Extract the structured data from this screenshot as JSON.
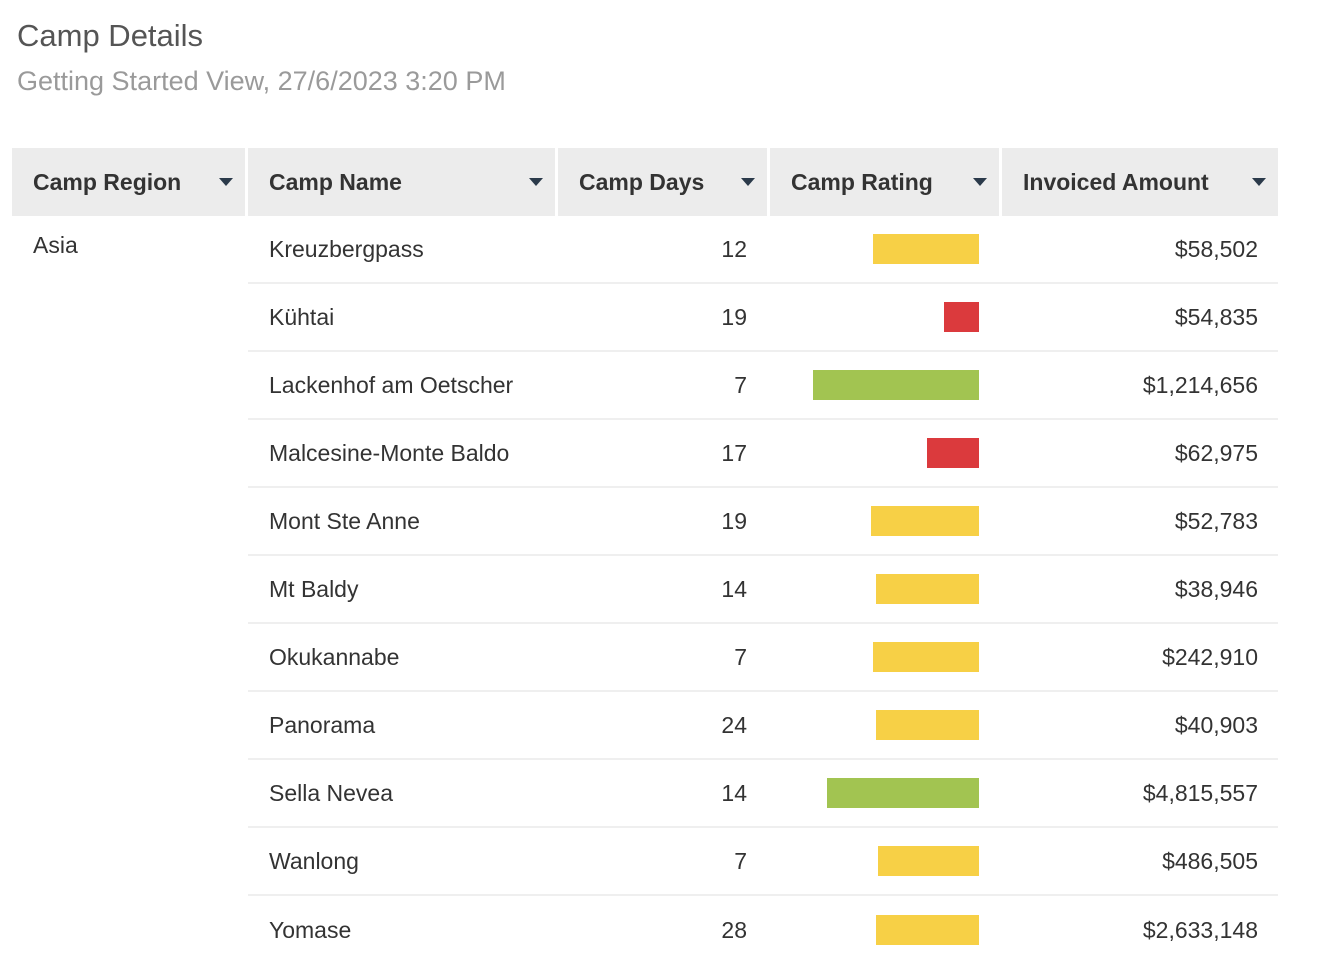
{
  "header": {
    "title": "Camp Details",
    "subtitle": "Getting Started View, 27/6/2023 3:20 PM"
  },
  "columns": [
    {
      "label": "Camp Region",
      "icon": "caret-down-icon"
    },
    {
      "label": "Camp Name",
      "icon": "caret-down-icon"
    },
    {
      "label": "Camp Days",
      "icon": "caret-down-icon"
    },
    {
      "label": "Camp Rating",
      "icon": "caret-down-icon"
    },
    {
      "label": "Invoiced Amount",
      "icon": "caret-down-icon"
    }
  ],
  "colors": {
    "yellow": "#f7d046",
    "red": "#db3a3d",
    "green": "#a2c451"
  },
  "region": "Asia",
  "rows": [
    {
      "name": "Kreuzbergpass",
      "days": "12",
      "rating": 0.63,
      "rating_color": "#f7d046",
      "amount": "$58,502"
    },
    {
      "name": "Kühtai",
      "days": "19",
      "rating": 0.21,
      "rating_color": "#db3a3d",
      "amount": "$54,835"
    },
    {
      "name": "Lackenhof am Oetscher",
      "days": "7",
      "rating": 0.98,
      "rating_color": "#a2c451",
      "amount": "$1,214,656"
    },
    {
      "name": "Malcesine-Monte Baldo",
      "days": "17",
      "rating": 0.31,
      "rating_color": "#db3a3d",
      "amount": "$62,975"
    },
    {
      "name": "Mont Ste Anne",
      "days": "19",
      "rating": 0.64,
      "rating_color": "#f7d046",
      "amount": "$52,783"
    },
    {
      "name": "Mt Baldy",
      "days": "14",
      "rating": 0.61,
      "rating_color": "#f7d046",
      "amount": "$38,946"
    },
    {
      "name": "Okukannabe",
      "days": "7",
      "rating": 0.63,
      "rating_color": "#f7d046",
      "amount": "$242,910"
    },
    {
      "name": "Panorama",
      "days": "24",
      "rating": 0.61,
      "rating_color": "#f7d046",
      "amount": "$40,903"
    },
    {
      "name": "Sella Nevea",
      "days": "14",
      "rating": 0.9,
      "rating_color": "#a2c451",
      "amount": "$4,815,557"
    },
    {
      "name": "Wanlong",
      "days": "7",
      "rating": 0.6,
      "rating_color": "#f7d046",
      "amount": "$486,505"
    },
    {
      "name": "Yomase",
      "days": "28",
      "rating": 0.61,
      "rating_color": "#f7d046",
      "amount": "$2,633,148"
    }
  ]
}
